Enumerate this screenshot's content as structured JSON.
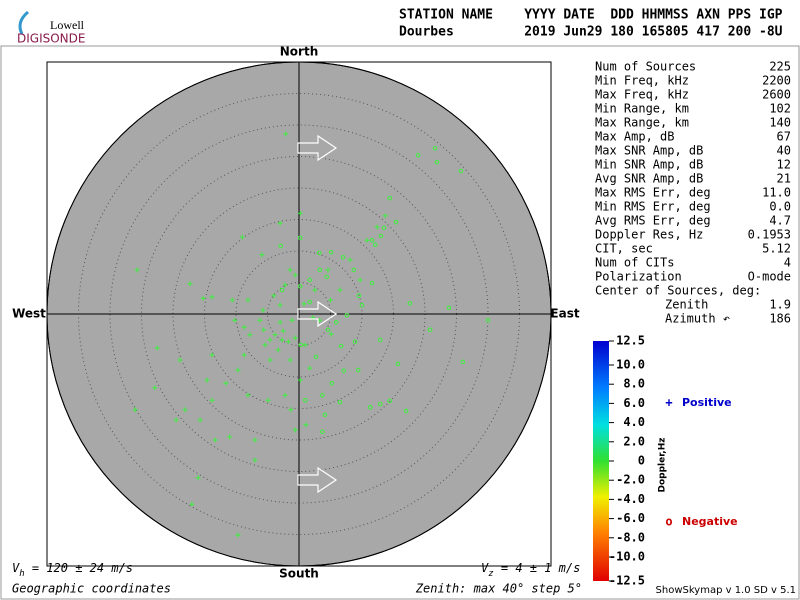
{
  "logo": {
    "top": "Lowell",
    "bottom": "DIGISONDE"
  },
  "header": {
    "line1": "STATION NAME    YYYY DATE  DDD HHMMSS AXN PPS IGP",
    "line2": "Dourbes         2019 Jun29 180 165805 417 200 -8U"
  },
  "stats": {
    "rows": [
      [
        "Num of Sources",
        "225"
      ],
      [
        "Min Freq, kHz",
        "2200"
      ],
      [
        "Max Freq, kHz",
        "2600"
      ],
      [
        "Min Range, km",
        "102"
      ],
      [
        "Max Range, km",
        "140"
      ],
      [
        "Max Amp, dB",
        "67"
      ],
      [
        "Max SNR Amp, dB",
        "40"
      ],
      [
        "Min SNR Amp, dB",
        "12"
      ],
      [
        "Avg SNR Amp, dB",
        "21"
      ],
      [
        "Max RMS Err, deg",
        "11.0"
      ],
      [
        "Min RMS Err, deg",
        "0.0"
      ],
      [
        "Avg RMS Err, deg",
        "4.7"
      ],
      [
        "Doppler Res, Hz",
        "0.1953"
      ],
      [
        "CIT, sec",
        "5.12"
      ],
      [
        "Num of CITs",
        "4"
      ],
      [
        "Polarization",
        "O-mode"
      ]
    ],
    "center_title": "Center of Sources, deg:",
    "center_rows": [
      [
        "Zenith",
        "1.9"
      ],
      [
        "Azimuth ↶",
        "186"
      ]
    ]
  },
  "footer": {
    "vh_symbol": "V",
    "vh_sub": "h",
    "vh_text": " = 120 ± 24 m/s",
    "vz_symbol": "V",
    "vz_sub": "z",
    "vz_text": " = 4 ± 1 m/s",
    "coords": "Geographic coordinates",
    "zenith": "Zenith: max 40°  step 5°",
    "version": "ShowSkymap v 1.0  SD v 5.1"
  },
  "chart_data": {
    "type": "skymap",
    "directions": {
      "north": "North",
      "south": "South",
      "east": "East",
      "west": "West"
    },
    "rlim": [
      0,
      40
    ],
    "rticks": [
      5,
      10,
      15,
      20,
      25,
      30,
      35,
      40
    ],
    "xlim": [
      -40,
      40
    ],
    "ylim": [
      -40,
      40
    ],
    "series": [
      {
        "name": "Positive",
        "marker": "+",
        "color": "#3cf03c",
        "legend_color": "#0000cc",
        "x": [
          -2.1,
          0.2,
          -3.0,
          -9.0,
          -5.9,
          -25.7,
          -17.3,
          -15.2,
          -13.8,
          -1.4,
          -0.6,
          -2.2,
          -4.0,
          -3.0,
          -6.2,
          -10.2,
          -8.7,
          -7.8,
          -5.6,
          -4.6,
          -3.8,
          -2.7,
          -1.7,
          -0.6,
          -5.4,
          -3.3,
          -2.5,
          -8.7,
          -13.8,
          -22.5,
          -18.9,
          -9.7,
          -11.6,
          -14.6,
          -22.9,
          -26.0,
          -18.1,
          -15.7,
          -13.3,
          -11.0,
          -7.0,
          -4.9,
          -2.2,
          0.2,
          1.7,
          3.3,
          5.0,
          6.5,
          8.1,
          9.7,
          12.4,
          13.7,
          10.8,
          4.6,
          2.5,
          -7.0,
          -16.0,
          -17.0,
          -9.7,
          1.1,
          -1.3,
          1.0,
          2.2,
          -0.6,
          -10.6,
          -4.6,
          -8.1,
          -19.5,
          -13.8,
          -8.1,
          -1.4,
          -5.7,
          -3.0,
          -1.1,
          0.8,
          5.1
        ],
        "values": [
          28.6,
          16.0,
          14.4,
          12.2,
          9.4,
          7.0,
          4.8,
          2.5,
          2.7,
          7.0,
          6.2,
          4.6,
          2.9,
          1.4,
          -1.0,
          -1.0,
          -2.1,
          -3.3,
          -2.5,
          -4.1,
          -3.3,
          -4.1,
          -4.4,
          -3.8,
          -4.9,
          -5.7,
          -2.7,
          -6.5,
          -6.5,
          -5.4,
          -7.3,
          -8.9,
          -11.0,
          -10.5,
          -11.7,
          -15.2,
          -15.2,
          -16.8,
          -20.0,
          -19.5,
          -20.0,
          -13.7,
          -12.9,
          -10.5,
          -8.6,
          -1.0,
          2.2,
          3.8,
          8.6,
          5.4,
          13.8,
          15.6,
          11.7,
          7.0,
          3.8,
          -23.2,
          -26.0,
          -30.2,
          -35.1,
          -17.6,
          -15.2,
          -4.9,
          -0.6,
          -18.4,
          2.2,
          -7.3,
          -12.9,
          -16.8,
          -13.7,
          2.2,
          -7.3,
          0.6,
          -1.3,
          -1.0,
          1.6,
          -3.2
        ]
      },
      {
        "name": "Negative",
        "marker": "o",
        "color": "#3cf03c",
        "legend_color": "#cc0000",
        "x": [
          21.6,
          18.9,
          21.9,
          25.7,
          14.4,
          13.5,
          15.4,
          13.0,
          11.6,
          12.1,
          5.1,
          7.0,
          3.2,
          1.7,
          3.3,
          4.4,
          8.7,
          11.6,
          9.5,
          10.0,
          7.6,
          5.9,
          4.6,
          6.7,
          8.9,
          12.9,
          17.6,
          23.8,
          20.8,
          30.0,
          26.0,
          15.7,
          9.4,
          7.1,
          5.2,
          3.7,
          2.7,
          0.3,
          6.5,
          11.3,
          12.9,
          14.4,
          17.0,
          4.1,
          3.7,
          1.0,
          1.7,
          0.2,
          -2.9,
          -2.7,
          0.2
        ],
        "values": [
          26.3,
          25.2,
          24.1,
          22.7,
          18.4,
          13.7,
          14.6,
          12.4,
          11.7,
          11.0,
          9.8,
          9.0,
          9.7,
          5.4,
          7.0,
          5.9,
          7.0,
          4.9,
          2.9,
          1.4,
          -0.2,
          -1.3,
          -2.5,
          -5.1,
          -4.4,
          -4.1,
          1.7,
          1.0,
          -2.5,
          -1.0,
          -7.6,
          -7.9,
          -8.9,
          -9.0,
          -11.0,
          -12.9,
          -6.8,
          -4.9,
          -14.0,
          -14.8,
          -14.3,
          -13.8,
          -15.4,
          -16.0,
          -18.7,
          -13.7,
          1.9,
          4.4,
          10.8,
          3.8,
          12.1
        ]
      }
    ],
    "colorbar": {
      "label": "Doppler,Hz",
      "lim": [
        -12.5,
        12.5
      ],
      "ticks": [
        12.5,
        {
          "value": 10,
          "label": "10.0"
        },
        {
          "value": 8,
          "label": "8.0"
        },
        {
          "value": 6,
          "label": "6.0"
        },
        {
          "value": 4,
          "label": "4.0"
        },
        {
          "value": 2,
          "label": "2.0"
        },
        0,
        {
          "value": -2,
          "label": "-2.0"
        },
        {
          "value": -4,
          "label": "-4.0"
        },
        {
          "value": -6,
          "label": "-6.0"
        },
        {
          "value": -8,
          "label": "-8.0"
        },
        {
          "value": -10,
          "label": "-10.0"
        },
        -12.5
      ]
    }
  }
}
